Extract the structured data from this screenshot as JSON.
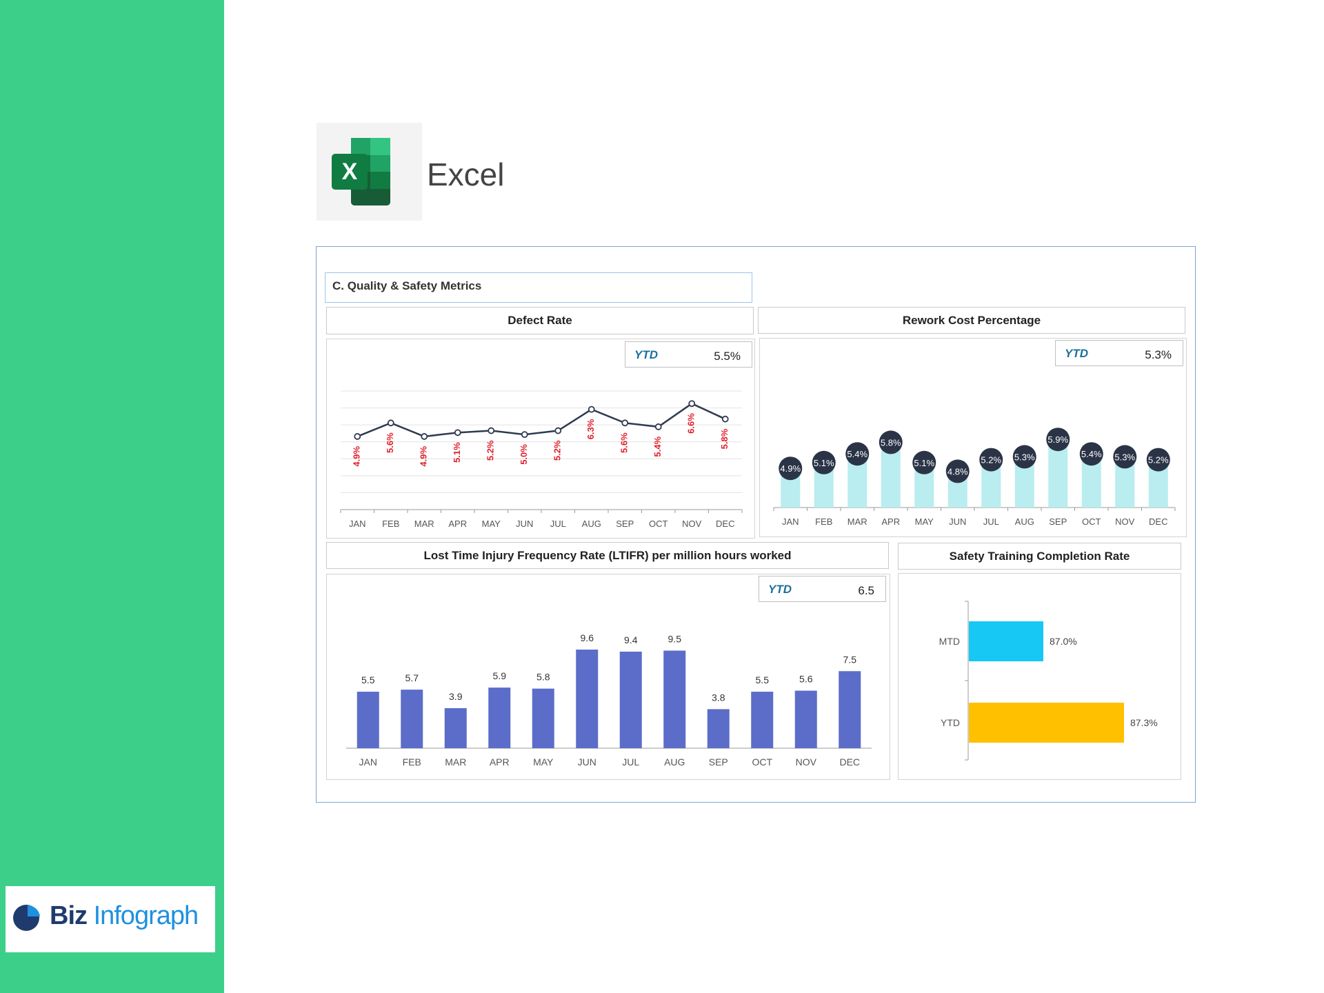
{
  "app": {
    "name": "Excel",
    "logo_letter": "X",
    "logo_icon": "excel-logo-icon"
  },
  "brand": {
    "name_part1": "Biz",
    "name_part2": "Infograph",
    "icon": "pie-chart-logo-icon"
  },
  "colors": {
    "sidebar": "#3ccf8a",
    "defect_line": "#2e3a4f",
    "defect_label": "#e0202a",
    "rework_bar": "#b9edef",
    "rework_bubble": "#2b3447",
    "ltifr_bar": "#5b6dc8",
    "mtd_bar": "#17c8f5",
    "ytd_bar": "#ffc000",
    "ytd_label": "#1b6f9c"
  },
  "dashboard": {
    "section_title": "C. Quality & Safety Metrics"
  },
  "defect_rate": {
    "title": "Defect Rate",
    "ytd_label": "YTD",
    "ytd_value": "5.5%"
  },
  "rework_cost": {
    "title": "Rework Cost Percentage",
    "ytd_label": "YTD",
    "ytd_value": "5.3%"
  },
  "ltifr": {
    "title": "Lost Time Injury Frequency Rate (LTIFR) per million hours worked",
    "ytd_label": "YTD",
    "ytd_value": "6.5"
  },
  "safety_training": {
    "title": "Safety Training Completion Rate"
  },
  "chart_data": [
    {
      "id": "defect_rate",
      "type": "line",
      "title": "Defect Rate",
      "categories": [
        "JAN",
        "FEB",
        "MAR",
        "APR",
        "MAY",
        "JUN",
        "JUL",
        "AUG",
        "SEP",
        "OCT",
        "NOV",
        "DEC"
      ],
      "values": [
        4.9,
        5.6,
        4.9,
        5.1,
        5.2,
        5.0,
        5.2,
        6.3,
        5.6,
        5.4,
        6.6,
        5.8
      ],
      "data_labels": [
        "4.9%",
        "5.6%",
        "4.9%",
        "5.1%",
        "5.2%",
        "5.0%",
        "5.2%",
        "6.3%",
        "5.6%",
        "5.4%",
        "6.6%",
        "5.8%"
      ],
      "grid": true,
      "legend": "none"
    },
    {
      "id": "rework_cost",
      "type": "bar",
      "title": "Rework Cost Percentage",
      "categories": [
        "JAN",
        "FEB",
        "MAR",
        "APR",
        "MAY",
        "JUN",
        "JUL",
        "AUG",
        "SEP",
        "OCT",
        "NOV",
        "DEC"
      ],
      "values": [
        4.9,
        5.1,
        5.4,
        5.8,
        5.1,
        4.8,
        5.2,
        5.3,
        5.9,
        5.4,
        5.3,
        5.2
      ],
      "data_labels": [
        "4.9%",
        "5.1%",
        "5.4%",
        "5.8%",
        "5.1%",
        "4.8%",
        "5.2%",
        "5.3%",
        "5.9%",
        "5.4%",
        "5.3%",
        "5.2%"
      ],
      "grid": false,
      "legend": "none"
    },
    {
      "id": "ltifr",
      "type": "bar",
      "title": "Lost Time Injury Frequency Rate (LTIFR) per million hours worked",
      "categories": [
        "JAN",
        "FEB",
        "MAR",
        "APR",
        "MAY",
        "JUN",
        "JUL",
        "AUG",
        "SEP",
        "OCT",
        "NOV",
        "DEC"
      ],
      "values": [
        5.5,
        5.7,
        3.9,
        5.9,
        5.8,
        9.6,
        9.4,
        9.5,
        3.8,
        5.5,
        5.6,
        7.5
      ],
      "data_labels": [
        "5.5",
        "5.7",
        "3.9",
        "5.9",
        "5.8",
        "9.6",
        "9.4",
        "9.5",
        "3.8",
        "5.5",
        "5.6",
        "7.5"
      ],
      "grid": false,
      "legend": "none"
    },
    {
      "id": "safety_training",
      "type": "bar",
      "orientation": "horizontal",
      "title": "Safety Training Completion Rate",
      "categories": [
        "MTD",
        "YTD"
      ],
      "values": [
        87.0,
        87.3
      ],
      "data_labels": [
        "87.0%",
        "87.3%"
      ],
      "grid": false,
      "legend": "none"
    }
  ]
}
